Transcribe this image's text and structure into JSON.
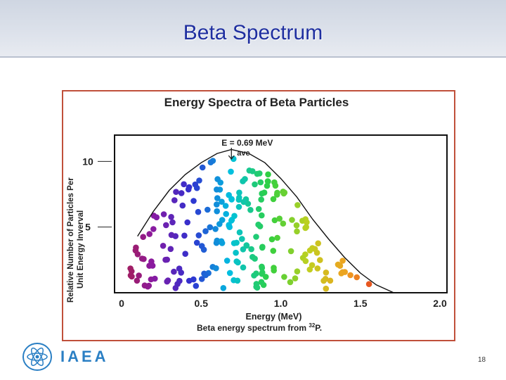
{
  "slide": {
    "title": "Beta Spectrum",
    "page_number": "18"
  },
  "footer": {
    "org_text": "IAEA",
    "logo_icon": "iaea-atom-logo-icon",
    "brand_color": "#2a7fc4"
  },
  "chart_data": {
    "type": "scatter",
    "title": "Energy Spectra of Beta Particles",
    "ylabel": "Relative Number of Particles Per Unit Energy Inverval",
    "xlabel": "Energy (MeV)",
    "caption_prefix": "Beta energy spectrum from ",
    "caption_isotope_mass": "32",
    "caption_element": "P.",
    "xlim": [
      0,
      2.0
    ],
    "ylim": [
      0,
      12
    ],
    "x_ticks": [
      "0",
      "0.5",
      "1.0",
      "1.5",
      "2.0"
    ],
    "y_ticks": [
      "5",
      "10"
    ],
    "annotation": {
      "text": "E = 0.69 MeV",
      "subscript": "ave",
      "x": 0.69
    },
    "curve": {
      "x": [
        0.1,
        0.2,
        0.3,
        0.4,
        0.5,
        0.6,
        0.69,
        0.8,
        0.9,
        1.0,
        1.1,
        1.2,
        1.3,
        1.4,
        1.5,
        1.6,
        1.71
      ],
      "y": [
        4.3,
        6.2,
        7.8,
        9.0,
        9.9,
        10.6,
        10.9,
        10.6,
        9.9,
        8.7,
        7.3,
        5.6,
        4.1,
        2.7,
        1.5,
        0.6,
        0.0
      ]
    },
    "particles": {
      "description_color_scale": [
        "#b0203a",
        "#8a1aa0",
        "#3030d0",
        "#00c0e0",
        "#30d040",
        "#c0d020",
        "#f0a020",
        "#e02020"
      ],
      "endpoint_mev": 1.71
    }
  }
}
